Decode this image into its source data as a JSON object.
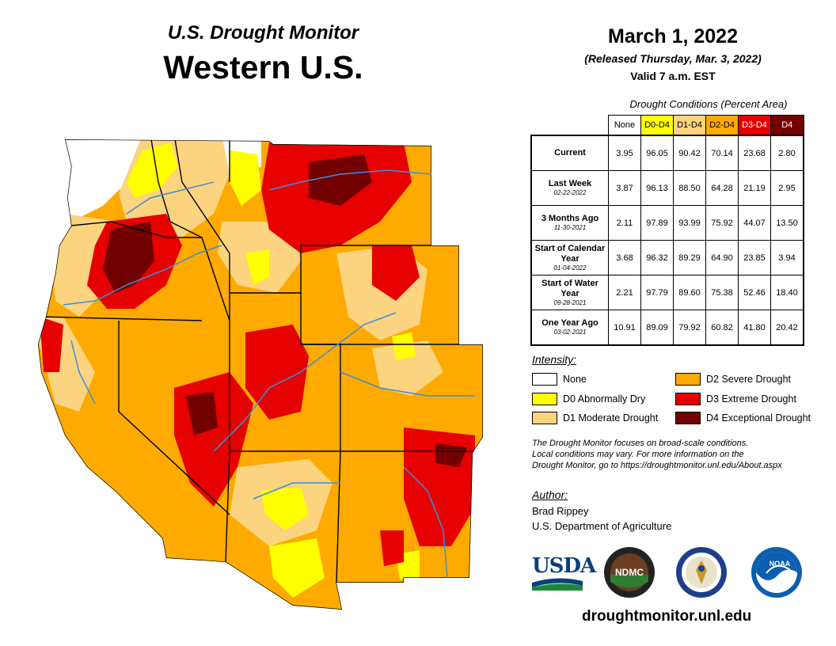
{
  "header": {
    "title_line1": "U.S. Drought Monitor",
    "title_line2": "Western U.S.",
    "date": "March 1, 2022",
    "released": "(Released Thursday, Mar. 3, 2022)",
    "valid": "Valid 7 a.m. EST"
  },
  "table": {
    "caption": "Drought Conditions (Percent Area)",
    "columns": [
      {
        "label": "None",
        "color": "#ffffff",
        "text_color": "#000000"
      },
      {
        "label": "D0-D4",
        "color": "#ffff00",
        "text_color": "#000000"
      },
      {
        "label": "D1-D4",
        "color": "#fcd37f",
        "text_color": "#000000"
      },
      {
        "label": "D2-D4",
        "color": "#ffaa00",
        "text_color": "#000000"
      },
      {
        "label": "D3-D4",
        "color": "#e60000",
        "text_color": "#ffffff"
      },
      {
        "label": "D4",
        "color": "#730000",
        "text_color": "#ffffff"
      }
    ],
    "rows": [
      {
        "label": "Current",
        "date": "",
        "values": [
          "3.95",
          "96.05",
          "90.42",
          "70.14",
          "23.68",
          "2.80"
        ]
      },
      {
        "label": "Last Week",
        "date": "02-22-2022",
        "values": [
          "3.87",
          "96.13",
          "88.50",
          "64.28",
          "21.19",
          "2.95"
        ]
      },
      {
        "label": "3 Months Ago",
        "date": "11-30-2021",
        "values": [
          "2.11",
          "97.89",
          "93.99",
          "75.92",
          "44.07",
          "13.50"
        ]
      },
      {
        "label": "Start of Calendar Year",
        "date": "01-04-2022",
        "values": [
          "3.68",
          "96.32",
          "89.29",
          "64.90",
          "23.85",
          "3.94"
        ]
      },
      {
        "label": "Start of Water Year",
        "date": "09-28-2021",
        "values": [
          "2.21",
          "97.79",
          "89.60",
          "75.38",
          "52.46",
          "18.40"
        ]
      },
      {
        "label": "One Year Ago",
        "date": "03-02-2021",
        "values": [
          "10.91",
          "89.09",
          "79.92",
          "60.82",
          "41.80",
          "20.42"
        ]
      }
    ]
  },
  "legend": {
    "title": "Intensity:",
    "items": [
      {
        "label": "None",
        "color": "#ffffff"
      },
      {
        "label": "D0 Abnormally Dry",
        "color": "#ffff00"
      },
      {
        "label": "D1 Moderate Drought",
        "color": "#fcd37f"
      },
      {
        "label": "D2 Severe Drought",
        "color": "#ffaa00"
      },
      {
        "label": "D3 Extreme Drought",
        "color": "#e60000"
      },
      {
        "label": "D4 Exceptional Drought",
        "color": "#730000"
      }
    ]
  },
  "note": {
    "line1": "The Drought Monitor focuses on broad-scale conditions.",
    "line2": "Local conditions may vary. For more information on the",
    "line3": "Drought Monitor, go to https://droughtmonitor.unl.edu/About.aspx"
  },
  "author": {
    "title": "Author:",
    "name": "Brad Rippey",
    "org": "U.S. Department of Agriculture"
  },
  "logos": {
    "usda": "USDA",
    "ndmc": "NDMC",
    "noaa": "NOAA"
  },
  "url": "droughtmonitor.unl.edu"
}
